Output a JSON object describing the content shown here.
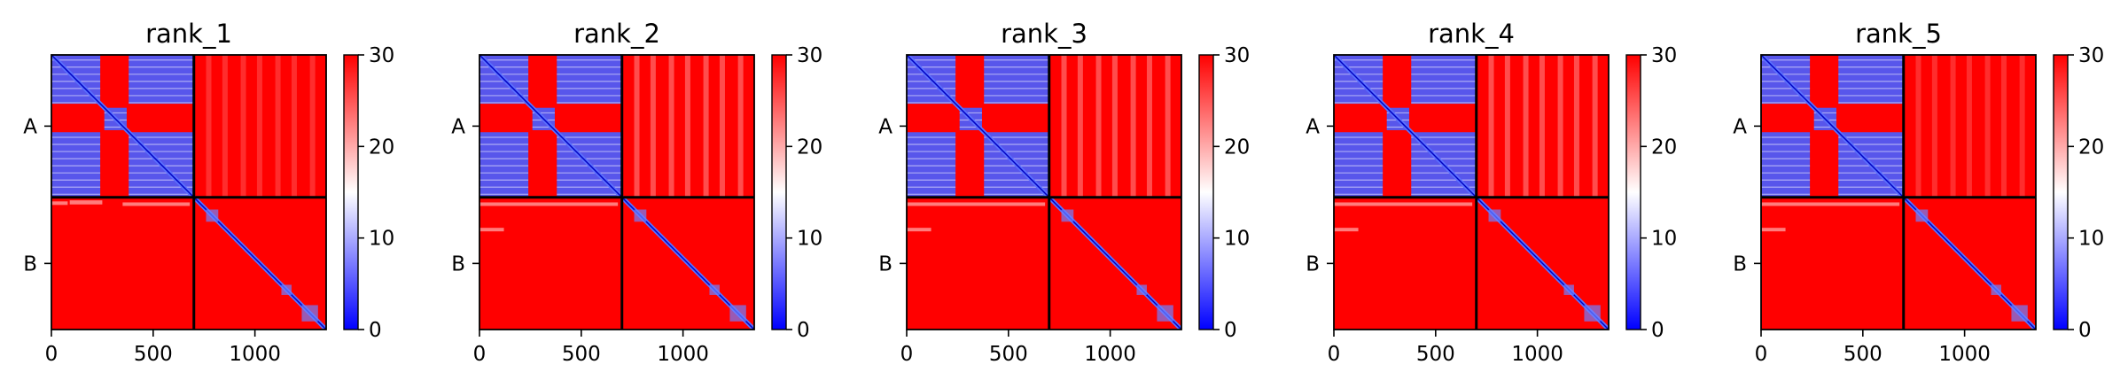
{
  "chart_data": [
    {
      "type": "heatmap",
      "title": "rank_1",
      "chain_labels": [
        "A",
        "B"
      ],
      "chain_boundary": 700,
      "x_range": [
        0,
        1350
      ],
      "x_ticks": [
        "0",
        "500",
        "1000"
      ],
      "x_tick_values": [
        0,
        500,
        1000
      ],
      "colorbar": {
        "range": [
          0,
          30
        ],
        "ticks": [
          "0",
          "10",
          "20",
          "30"
        ],
        "tick_values": [
          0,
          10,
          20,
          30
        ],
        "colormap": "bwr"
      },
      "blue_blocks": [
        {
          "x": [
            0,
            240
          ],
          "y": [
            0,
            240
          ]
        },
        {
          "x": [
            380,
            700
          ],
          "y": [
            0,
            240
          ]
        },
        {
          "x": [
            0,
            240
          ],
          "y": [
            380,
            700
          ]
        },
        {
          "x": [
            380,
            700
          ],
          "y": [
            380,
            700
          ]
        },
        {
          "x": [
            260,
            370
          ],
          "y": [
            260,
            370
          ]
        }
      ],
      "interchain_stripes_B": [
        {
          "x": [
            0,
            80
          ],
          "y": [
            20,
            35
          ]
        },
        {
          "x": [
            90,
            250
          ],
          "y": [
            15,
            35
          ]
        },
        {
          "x": [
            350,
            680
          ],
          "y": [
            25,
            40
          ]
        }
      ]
    },
    {
      "type": "heatmap",
      "title": "rank_2",
      "chain_labels": [
        "A",
        "B"
      ],
      "chain_boundary": 700,
      "x_range": [
        0,
        1350
      ],
      "x_ticks": [
        "0",
        "500",
        "1000"
      ],
      "x_tick_values": [
        0,
        500,
        1000
      ],
      "colorbar": {
        "range": [
          0,
          30
        ],
        "ticks": [
          "0",
          "10",
          "20",
          "30"
        ],
        "tick_values": [
          0,
          10,
          20,
          30
        ],
        "colormap": "bwr"
      },
      "blue_blocks": [
        {
          "x": [
            0,
            240
          ],
          "y": [
            0,
            240
          ]
        },
        {
          "x": [
            380,
            700
          ],
          "y": [
            0,
            240
          ]
        },
        {
          "x": [
            0,
            240
          ],
          "y": [
            380,
            700
          ]
        },
        {
          "x": [
            380,
            700
          ],
          "y": [
            380,
            700
          ]
        },
        {
          "x": [
            260,
            370
          ],
          "y": [
            260,
            370
          ]
        }
      ],
      "interchain_stripes_B": []
    },
    {
      "type": "heatmap",
      "title": "rank_3",
      "chain_labels": [
        "A",
        "B"
      ],
      "chain_boundary": 700,
      "x_range": [
        0,
        1350
      ],
      "x_ticks": [
        "0",
        "500",
        "1000"
      ],
      "x_tick_values": [
        0,
        500,
        1000
      ],
      "colorbar": {
        "range": [
          0,
          30
        ],
        "ticks": [
          "0",
          "10",
          "20",
          "30"
        ],
        "tick_values": [
          0,
          10,
          20,
          30
        ],
        "colormap": "bwr"
      },
      "blue_blocks": [
        {
          "x": [
            0,
            240
          ],
          "y": [
            0,
            240
          ]
        },
        {
          "x": [
            380,
            700
          ],
          "y": [
            0,
            240
          ]
        },
        {
          "x": [
            0,
            240
          ],
          "y": [
            380,
            700
          ]
        },
        {
          "x": [
            380,
            700
          ],
          "y": [
            380,
            700
          ]
        },
        {
          "x": [
            260,
            370
          ],
          "y": [
            260,
            370
          ]
        }
      ],
      "interchain_stripes_B": []
    },
    {
      "type": "heatmap",
      "title": "rank_4",
      "chain_labels": [
        "A",
        "B"
      ],
      "chain_boundary": 700,
      "x_range": [
        0,
        1350
      ],
      "x_ticks": [
        "0",
        "500",
        "1000"
      ],
      "x_tick_values": [
        0,
        500,
        1000
      ],
      "colorbar": {
        "range": [
          0,
          30
        ],
        "ticks": [
          "0",
          "10",
          "20",
          "30"
        ],
        "tick_values": [
          0,
          10,
          20,
          30
        ],
        "colormap": "bwr"
      },
      "blue_blocks": [
        {
          "x": [
            0,
            240
          ],
          "y": [
            0,
            240
          ]
        },
        {
          "x": [
            380,
            700
          ],
          "y": [
            0,
            240
          ]
        },
        {
          "x": [
            0,
            240
          ],
          "y": [
            380,
            700
          ]
        },
        {
          "x": [
            380,
            700
          ],
          "y": [
            380,
            700
          ]
        },
        {
          "x": [
            260,
            370
          ],
          "y": [
            260,
            370
          ]
        }
      ],
      "interchain_stripes_B": []
    },
    {
      "type": "heatmap",
      "title": "rank_5",
      "chain_labels": [
        "A",
        "B"
      ],
      "chain_boundary": 700,
      "x_range": [
        0,
        1350
      ],
      "x_ticks": [
        "0",
        "500",
        "1000"
      ],
      "x_tick_values": [
        0,
        500,
        1000
      ],
      "colorbar": {
        "range": [
          0,
          30
        ],
        "ticks": [
          "0",
          "10",
          "20",
          "30"
        ],
        "tick_values": [
          0,
          10,
          20,
          30
        ],
        "colormap": "bwr"
      },
      "blue_blocks": [
        {
          "x": [
            0,
            240
          ],
          "y": [
            0,
            240
          ]
        },
        {
          "x": [
            380,
            700
          ],
          "y": [
            0,
            240
          ]
        },
        {
          "x": [
            0,
            240
          ],
          "y": [
            380,
            700
          ]
        },
        {
          "x": [
            380,
            700
          ],
          "y": [
            380,
            700
          ]
        },
        {
          "x": [
            260,
            370
          ],
          "y": [
            260,
            370
          ]
        }
      ],
      "interchain_stripes_B": []
    }
  ],
  "colors": {
    "high": "#ff0000",
    "mid": "#ffffff",
    "low": "#0000ff",
    "axis": "#000000"
  }
}
